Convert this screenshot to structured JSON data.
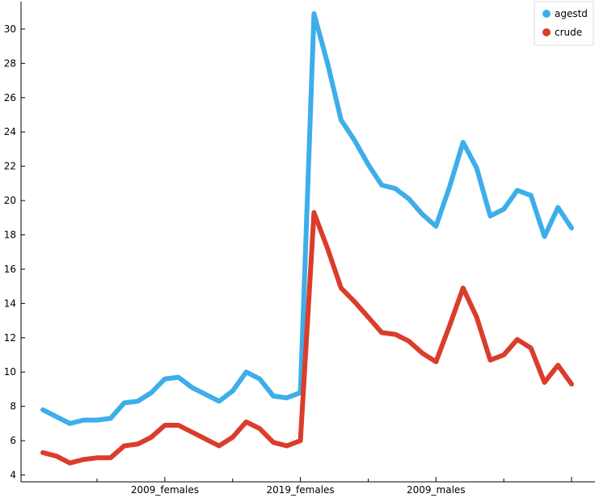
{
  "chart_data": {
    "type": "line",
    "title": "",
    "xlabel": "",
    "ylabel": "",
    "ylim": [
      3.6,
      31.6
    ],
    "yticks": [
      4,
      6,
      8,
      10,
      12,
      14,
      16,
      18,
      20,
      22,
      24,
      26,
      28,
      30
    ],
    "xtick_labels": [
      {
        "label": "2009_females",
        "index": 9
      },
      {
        "label": "2019_females",
        "index": 19
      },
      {
        "label": "2009_males",
        "index": 29
      }
    ],
    "grid": false,
    "legend_position": "top-right",
    "series": [
      {
        "name": "agestd",
        "color": "#3daee9",
        "values": [
          7.8,
          7.4,
          7.0,
          7.2,
          7.2,
          7.3,
          8.2,
          8.3,
          8.8,
          9.6,
          9.7,
          9.1,
          8.7,
          8.3,
          8.9,
          10.0,
          9.6,
          8.6,
          8.5,
          8.8,
          30.9,
          28.0,
          24.7,
          23.5,
          22.1,
          20.9,
          20.7,
          20.1,
          19.2,
          18.5,
          20.8,
          23.4,
          21.9,
          19.1,
          19.5,
          20.6,
          20.3,
          17.9,
          19.6,
          18.4
        ]
      },
      {
        "name": "crude",
        "color": "#da3d2b",
        "values": [
          5.3,
          5.1,
          4.7,
          4.9,
          5.0,
          5.0,
          5.7,
          5.8,
          6.2,
          6.9,
          6.9,
          6.5,
          6.1,
          5.7,
          6.2,
          7.1,
          6.7,
          5.9,
          5.7,
          6.0,
          19.3,
          17.2,
          14.9,
          14.1,
          13.2,
          12.3,
          12.2,
          11.8,
          11.1,
          10.6,
          12.7,
          14.9,
          13.2,
          10.7,
          11.0,
          11.9,
          11.4,
          9.4,
          10.4,
          9.3
        ]
      }
    ]
  }
}
